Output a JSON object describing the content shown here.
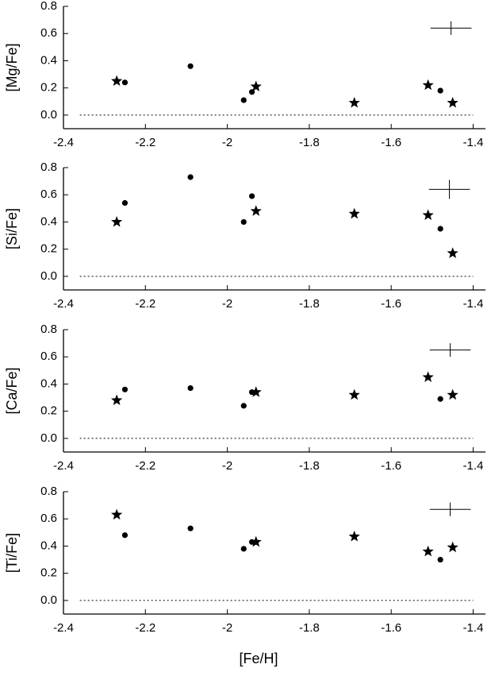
{
  "chart_data": [
    {
      "type": "scatter",
      "ylabel": "[Mg/Fe]",
      "xlim": [
        -2.4,
        -1.37
      ],
      "ylim": [
        -0.1,
        0.8
      ],
      "xticks": [
        -2.4,
        -2.2,
        -2.0,
        -1.8,
        -1.6,
        -1.4
      ],
      "yticks": [
        {
          "value": 0,
          "label": "0.0"
        },
        0.2,
        0.4,
        0.6,
        0.8
      ],
      "hline": {
        "y": 0,
        "x": [
          -2.36,
          -1.4
        ]
      },
      "error_bar": {
        "x": -1.454,
        "y": 0.64,
        "xerr": 0.05,
        "yerr": 0.05
      },
      "series": [
        {
          "marker": "circle",
          "color": "#000000",
          "x": [
            -2.25,
            -2.09,
            -1.96,
            -1.94,
            -1.48
          ],
          "values": [
            0.24,
            0.36,
            0.11,
            0.17,
            0.18
          ]
        },
        {
          "marker": "star",
          "color": "#000000",
          "x": [
            -2.27,
            -1.93,
            -1.69,
            -1.51,
            -1.45
          ],
          "values": [
            0.25,
            0.21,
            0.09,
            0.22,
            0.09
          ]
        }
      ]
    },
    {
      "type": "scatter",
      "ylabel": "[Si/Fe]",
      "xlim": [
        -2.4,
        -1.37
      ],
      "ylim": [
        -0.1,
        0.8
      ],
      "xticks": [
        -2.4,
        -2.2,
        -2.0,
        -1.8,
        -1.6,
        -1.4
      ],
      "yticks": [
        {
          "value": 0,
          "label": "0.0"
        },
        0.2,
        0.4,
        0.6,
        0.8
      ],
      "hline": {
        "y": 0,
        "x": [
          -2.36,
          -1.4
        ]
      },
      "error_bar": {
        "x": -1.458,
        "y": 0.64,
        "xerr": 0.05,
        "yerr": 0.07
      },
      "series": [
        {
          "marker": "circle",
          "color": "#000000",
          "x": [
            -2.25,
            -2.09,
            -1.96,
            -1.94,
            -1.48
          ],
          "values": [
            0.54,
            0.73,
            0.4,
            0.59,
            0.35
          ]
        },
        {
          "marker": "star",
          "color": "#000000",
          "x": [
            -2.27,
            -1.93,
            -1.69,
            -1.51,
            -1.45
          ],
          "values": [
            0.4,
            0.48,
            0.46,
            0.45,
            0.17
          ]
        }
      ]
    },
    {
      "type": "scatter",
      "ylabel": "[Ca/Fe]",
      "xlim": [
        -2.4,
        -1.37
      ],
      "ylim": [
        -0.1,
        0.8
      ],
      "xticks": [
        -2.4,
        -2.2,
        -2.0,
        -1.8,
        -1.6,
        -1.4
      ],
      "yticks": [
        {
          "value": 0,
          "label": "0.0"
        },
        0.2,
        0.4,
        0.6,
        0.8
      ],
      "hline": {
        "y": 0,
        "x": [
          -2.36,
          -1.4
        ]
      },
      "error_bar": {
        "x": -1.456,
        "y": 0.65,
        "xerr": 0.05,
        "yerr": 0.05
      },
      "series": [
        {
          "marker": "circle",
          "color": "#000000",
          "x": [
            -2.25,
            -2.09,
            -1.96,
            -1.94,
            -1.48
          ],
          "values": [
            0.36,
            0.37,
            0.24,
            0.34,
            0.29
          ]
        },
        {
          "marker": "star",
          "color": "#000000",
          "x": [
            -2.27,
            -1.93,
            -1.69,
            -1.51,
            -1.45
          ],
          "values": [
            0.28,
            0.34,
            0.32,
            0.45,
            0.32
          ]
        }
      ]
    },
    {
      "type": "scatter",
      "ylabel": "[Ti/Fe]",
      "xlabel": "[Fe/H]",
      "xlim": [
        -2.4,
        -1.37
      ],
      "ylim": [
        -0.1,
        0.8
      ],
      "xticks": [
        -2.4,
        -2.2,
        -2.0,
        -1.8,
        -1.6,
        -1.4
      ],
      "yticks": [
        {
          "value": 0,
          "label": "0.0"
        },
        0.2,
        0.4,
        0.6,
        0.8
      ],
      "hline": {
        "y": 0,
        "x": [
          -2.36,
          -1.4
        ]
      },
      "error_bar": {
        "x": -1.456,
        "y": 0.67,
        "xerr": 0.05,
        "yerr": 0.05
      },
      "series": [
        {
          "marker": "circle",
          "color": "#000000",
          "x": [
            -2.25,
            -2.09,
            -1.96,
            -1.94,
            -1.48
          ],
          "values": [
            0.48,
            0.53,
            0.38,
            0.43,
            0.3
          ]
        },
        {
          "marker": "star",
          "color": "#000000",
          "x": [
            -2.27,
            -1.93,
            -1.69,
            -1.51,
            -1.45
          ],
          "values": [
            0.63,
            0.43,
            0.47,
            0.36,
            0.39
          ]
        }
      ]
    }
  ]
}
